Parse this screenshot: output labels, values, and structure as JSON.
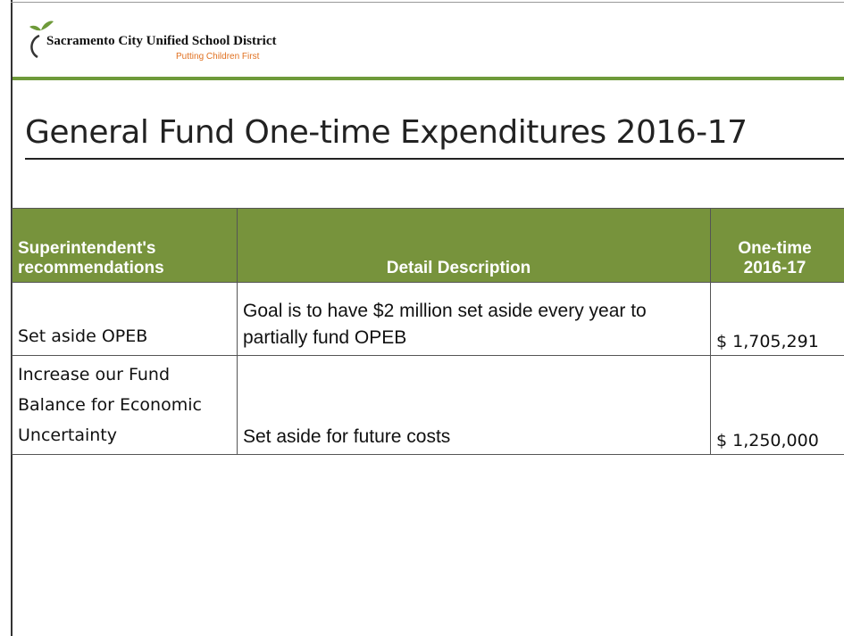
{
  "header": {
    "organization": "Sacramento City Unified School District",
    "tagline": "Putting Children First"
  },
  "title": "General Fund One-time Expenditures 2016-17",
  "table": {
    "columns": [
      "Superintendent's recommendations",
      "Detail Description",
      "One-time 2016-17"
    ],
    "rows": [
      [
        "Set aside OPEB",
        "Goal is to have $2 million set aside every year to partially fund OPEB",
        "$ 1,705,291"
      ],
      [
        "Increase our Fund Balance for Economic Uncertainty",
        "Set aside for future costs",
        "$ 1,250,000"
      ]
    ]
  }
}
